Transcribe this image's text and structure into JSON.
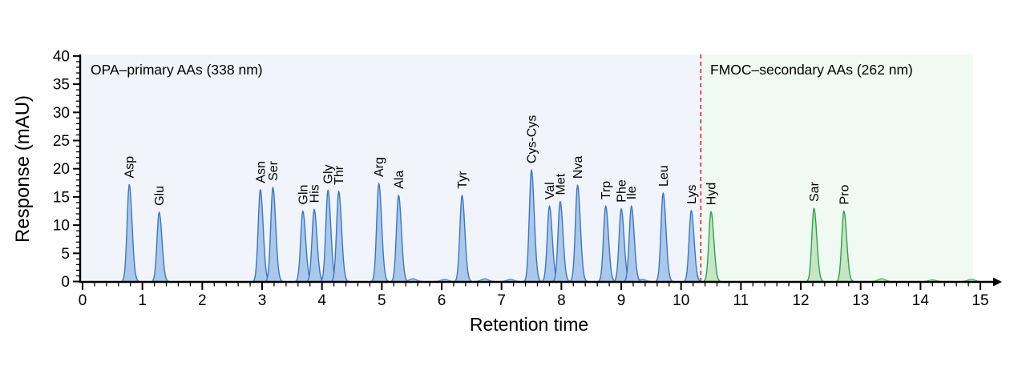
{
  "chart_data": {
    "type": "line",
    "subtype": "chromatogram",
    "xlabel": "Retention time",
    "ylabel": "Response (mAU)",
    "xlim": [
      0,
      15
    ],
    "ylim": [
      0,
      40
    ],
    "x_major_tick_step": 1,
    "x_minor_tick_step": 0.2,
    "y_major_tick_step": 5,
    "y_minor_tick_step": 1,
    "x_tick_labels": [
      "0",
      "1",
      "2",
      "3",
      "4",
      "5",
      "6",
      "7",
      "8",
      "9",
      "10",
      "11",
      "12",
      "13",
      "14",
      "15"
    ],
    "y_tick_labels": [
      "0",
      "5",
      "10",
      "15",
      "20",
      "25",
      "30",
      "35",
      "40"
    ],
    "grid": false,
    "legend_position": "none",
    "divider": {
      "retention_time": 10.33,
      "color": "#e02222",
      "style": "dashed"
    },
    "regions": [
      {
        "label": "OPA–primary AAs (338 nm)",
        "text_color": "#1e64b4",
        "bg_color": "#f1f4fb",
        "start": 0,
        "end": 10.33
      },
      {
        "label": "FMOC–secondary AAs (262 nm)",
        "text_color": "#1d7f35",
        "bg_color": "#f1faf2",
        "start": 10.33,
        "end": 14.88
      }
    ],
    "series": [
      {
        "name": "OPA-primary amino acids",
        "detection_wavelength": "338 nm",
        "stroke": "#3b76c6",
        "fill": "#aac8e9",
        "peaks": [
          {
            "label": "Asp",
            "t": 0.78,
            "mAU": 17.2
          },
          {
            "label": "Glu",
            "t": 1.28,
            "mAU": 12.3
          },
          {
            "label": "Asn",
            "t": 2.97,
            "mAU": 16.3
          },
          {
            "label": "Ser",
            "t": 3.18,
            "mAU": 16.7
          },
          {
            "label": "Gln",
            "t": 3.68,
            "mAU": 12.5
          },
          {
            "label": "His",
            "t": 3.87,
            "mAU": 12.8
          },
          {
            "label": "Gly",
            "t": 4.1,
            "mAU": 16.2
          },
          {
            "label": "Thr",
            "t": 4.28,
            "mAU": 16.0
          },
          {
            "label": "Arg",
            "t": 4.95,
            "mAU": 17.4
          },
          {
            "label": "Ala",
            "t": 5.28,
            "mAU": 15.3
          },
          {
            "label": "Tyr",
            "t": 6.34,
            "mAU": 15.3
          },
          {
            "label": "Cys-Cys",
            "t": 7.5,
            "mAU": 19.8
          },
          {
            "label": "Val",
            "t": 7.8,
            "mAU": 13.4
          },
          {
            "label": "Met",
            "t": 7.98,
            "mAU": 14.2
          },
          {
            "label": "Nva",
            "t": 8.27,
            "mAU": 17.1
          },
          {
            "label": "Trp",
            "t": 8.74,
            "mAU": 13.4
          },
          {
            "label": "Phe",
            "t": 9.0,
            "mAU": 12.9
          },
          {
            "label": "Ile",
            "t": 9.17,
            "mAU": 13.4
          },
          {
            "label": "Leu",
            "t": 9.7,
            "mAU": 15.7
          },
          {
            "label": "Lys",
            "t": 10.17,
            "mAU": 12.6
          }
        ]
      },
      {
        "name": "FMOC-secondary amino acids",
        "detection_wavelength": "262 nm",
        "stroke": "#2da14c",
        "fill": "#c5e7c6",
        "peaks": [
          {
            "label": "Hyd",
            "t": 10.5,
            "mAU": 12.4
          },
          {
            "label": "Sar",
            "t": 12.22,
            "mAU": 13.0
          },
          {
            "label": "Pro",
            "t": 12.72,
            "mAU": 12.5
          }
        ]
      }
    ],
    "baseline_bumps": [
      {
        "series": 0,
        "t": 5.52,
        "mAU": 0.5
      },
      {
        "series": 0,
        "t": 6.05,
        "mAU": 0.4
      },
      {
        "series": 0,
        "t": 6.72,
        "mAU": 0.5
      },
      {
        "series": 0,
        "t": 7.15,
        "mAU": 0.4
      },
      {
        "series": 0,
        "t": 9.35,
        "mAU": 0.4
      },
      {
        "series": 1,
        "t": 13.35,
        "mAU": 0.5
      },
      {
        "series": 1,
        "t": 14.2,
        "mAU": 0.3
      },
      {
        "series": 1,
        "t": 14.85,
        "mAU": 0.4
      }
    ]
  }
}
